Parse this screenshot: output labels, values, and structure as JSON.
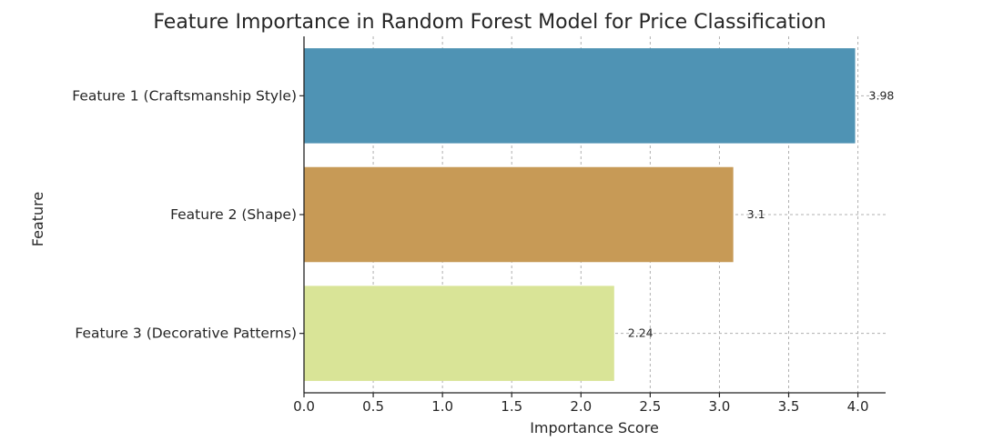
{
  "chart_data": {
    "type": "bar",
    "orientation": "horizontal",
    "title": "Feature Importance in Random Forest Model for Price Classification",
    "xlabel": "Importance Score",
    "ylabel": "Feature",
    "categories": [
      "Feature 1 (Craftsmanship Style)",
      "Feature 2 (Shape)",
      "Feature 3 (Decorative Patterns)"
    ],
    "values": [
      3.98,
      3.1,
      2.24
    ],
    "data_labels": [
      "3.98",
      "3.1",
      "2.24"
    ],
    "colors": [
      "#4f93b4",
      "#c79a56",
      "#d9e497"
    ],
    "xlim": [
      0,
      4.2
    ],
    "xticks": [
      0.0,
      0.5,
      1.0,
      1.5,
      2.0,
      2.5,
      3.0,
      3.5,
      4.0
    ],
    "xtick_labels": [
      "0.0",
      "0.5",
      "1.0",
      "1.5",
      "2.0",
      "2.5",
      "3.0",
      "3.5",
      "4.0"
    ],
    "grid": true
  }
}
